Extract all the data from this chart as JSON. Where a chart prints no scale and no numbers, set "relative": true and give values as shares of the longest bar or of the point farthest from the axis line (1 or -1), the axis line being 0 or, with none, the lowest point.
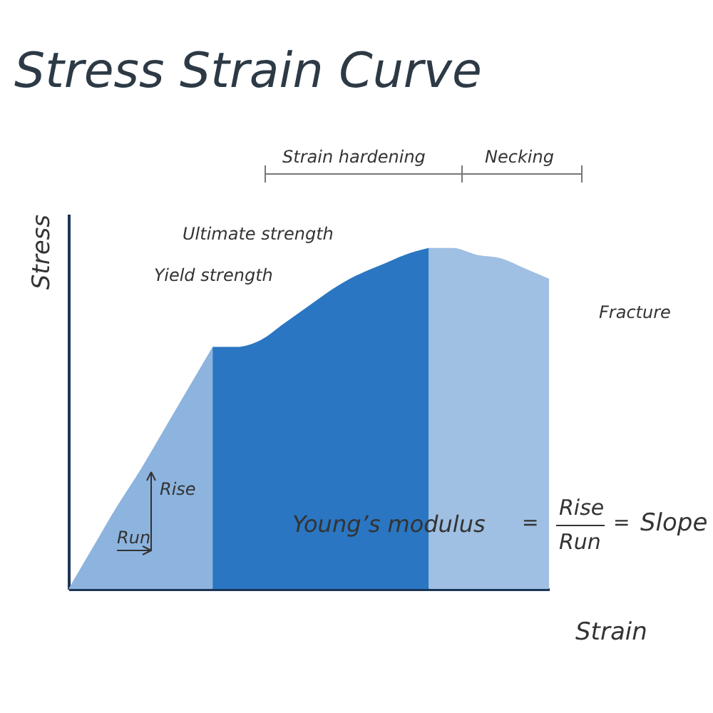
{
  "chart_data": {
    "type": "area",
    "title": "Stress Strain Curve",
    "xlabel": "Strain",
    "ylabel": "Stress",
    "relative": true,
    "categories": [
      null,
      null,
      null,
      null,
      null,
      null,
      null,
      null,
      null,
      null,
      null,
      null,
      null,
      null,
      null,
      null,
      null,
      null,
      null,
      null,
      null
    ],
    "series": [
      {
        "color": "#8db4de",
        "values": [
          0,
          0.12,
          0.24,
          0.35,
          0.47,
          0.59,
          0.71,
          null,
          null,
          null,
          null,
          null,
          null,
          null,
          null,
          null,
          null,
          null,
          null,
          null,
          null
        ]
      },
      {
        "color": "#2a76c2",
        "values": [
          null,
          null,
          null,
          null,
          null,
          null,
          0.71,
          0.71,
          0.73,
          0.78,
          0.83,
          0.88,
          0.92,
          0.95,
          0.98,
          1,
          null,
          null,
          null,
          null,
          null
        ]
      },
      {
        "color": "#9fbfe3",
        "values": [
          null,
          null,
          null,
          null,
          null,
          null,
          null,
          null,
          null,
          null,
          null,
          null,
          null,
          null,
          null,
          1,
          1,
          0.98,
          0.97,
          0.94,
          0.91
        ]
      }
    ],
    "annotations": [
      "Strain hardening",
      "Necking",
      "Ultimate strength",
      "Yield strength",
      "Fracture",
      "Rise",
      "Run",
      "Young’s modulus",
      "=",
      "Rise",
      "Run",
      "=",
      "Slope"
    ]
  }
}
